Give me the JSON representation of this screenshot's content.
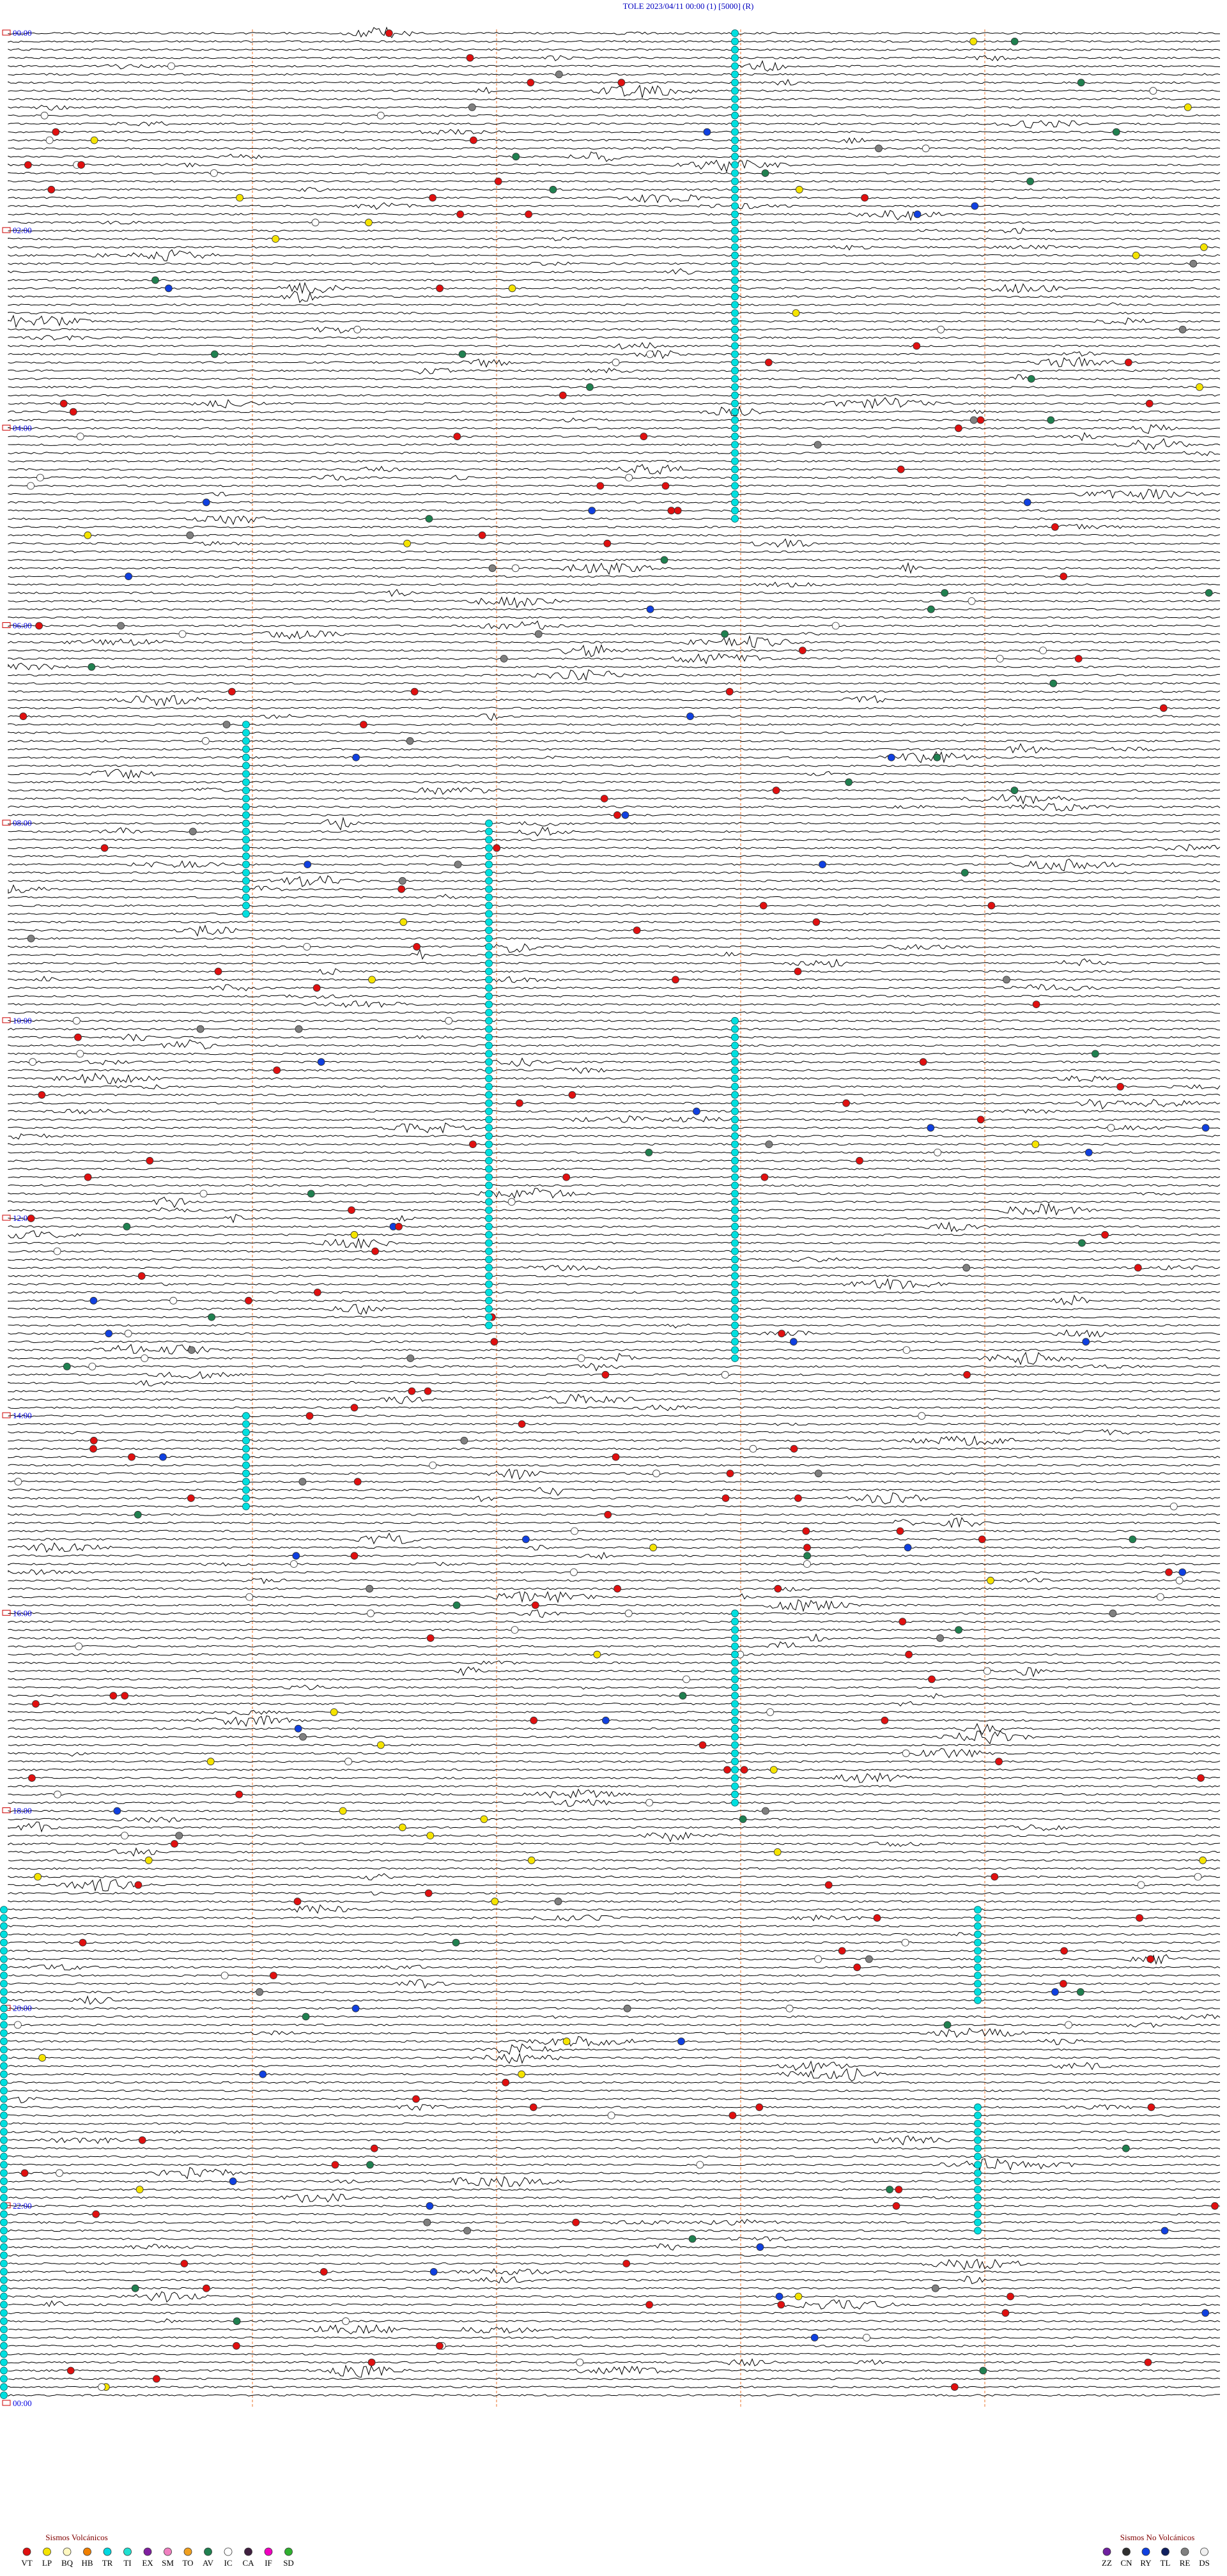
{
  "header": {
    "title": "TOLE    2023/04/11 00:00    (1)    [5000]  (R)"
  },
  "hour_labels": [
    "00:00",
    "02:00",
    "04:00",
    "06:00",
    "08:00",
    "10:00",
    "12:00",
    "14:00",
    "16:00",
    "18:00",
    "20:00",
    "22:00",
    "00:00"
  ],
  "legend": {
    "volcanic": {
      "title": "Sismos Volcánicos",
      "items": [
        {
          "code": "VT",
          "color": "#e01010"
        },
        {
          "code": "LP",
          "color": "#f5e400"
        },
        {
          "code": "BQ",
          "color": "#fff8c0"
        },
        {
          "code": "HB",
          "color": "#f08000"
        },
        {
          "code": "TR",
          "color": "#00d8e0"
        },
        {
          "code": "TI",
          "color": "#20e0d0"
        },
        {
          "code": "EX",
          "color": "#8020a0"
        },
        {
          "code": "SM",
          "color": "#f080c0"
        },
        {
          "code": "TO",
          "color": "#f0a020"
        },
        {
          "code": "AV",
          "color": "#208050"
        },
        {
          "code": "IC",
          "color": "#ffffff"
        },
        {
          "code": "CA",
          "color": "#402040"
        },
        {
          "code": "IF",
          "color": "#f000c0"
        },
        {
          "code": "SD",
          "color": "#30b030"
        }
      ]
    },
    "non_volcanic": {
      "title": "Sismos No Volcánicos",
      "items": [
        {
          "code": "ZZ",
          "color": "#7020a0"
        },
        {
          "code": "CN",
          "color": "#303030"
        },
        {
          "code": "RY",
          "color": "#1040e0"
        },
        {
          "code": "TL",
          "color": "#102060"
        },
        {
          "code": "RE",
          "color": "#808080"
        },
        {
          "code": "DS",
          "color": "#f0f0f0"
        }
      ]
    }
  }
}
